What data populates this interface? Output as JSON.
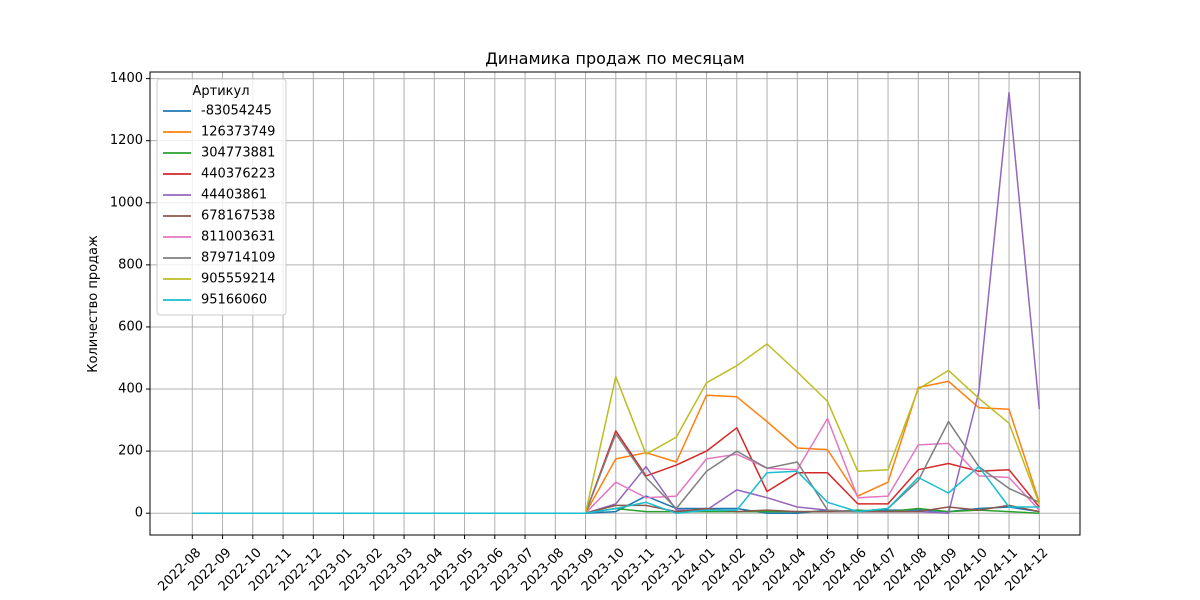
{
  "chart_data": {
    "type": "line",
    "title": "Динамика продаж по месяцам",
    "xlabel": "",
    "ylabel": "Количество продаж",
    "ylim": [
      -50,
      1420
    ],
    "yticks": [
      0,
      200,
      400,
      600,
      800,
      1000,
      1200,
      1400
    ],
    "grid": true,
    "legend_title": "Артикул",
    "legend_position": "top-left",
    "x": [
      "2022-08",
      "2022-09",
      "2022-10",
      "2022-11",
      "2022-12",
      "2023-01",
      "2023-02",
      "2023-03",
      "2023-04",
      "2023-05",
      "2023-06",
      "2023-07",
      "2023-08",
      "2023-09",
      "2023-10",
      "2023-11",
      "2023-12",
      "2024-01",
      "2024-02",
      "2024-03",
      "2024-04",
      "2024-05",
      "2024-06",
      "2024-07",
      "2024-08",
      "2024-09",
      "2024-10",
      "2024-11",
      "2024-12"
    ],
    "series": [
      {
        "name": "-83054245",
        "color": "#1f77b4",
        "values": [
          0,
          0,
          0,
          0,
          0,
          0,
          0,
          0,
          0,
          0,
          0,
          0,
          0,
          0,
          5,
          55,
          15,
          15,
          15,
          0,
          0,
          10,
          5,
          10,
          10,
          5,
          15,
          20,
          5
        ]
      },
      {
        "name": "126373749",
        "color": "#ff7f0e",
        "values": [
          0,
          0,
          0,
          0,
          0,
          0,
          0,
          0,
          0,
          0,
          0,
          0,
          0,
          0,
          175,
          195,
          165,
          380,
          375,
          295,
          210,
          205,
          55,
          100,
          405,
          425,
          340,
          335,
          35
        ]
      },
      {
        "name": "304773881",
        "color": "#2ca02c",
        "values": [
          0,
          0,
          0,
          0,
          0,
          0,
          0,
          0,
          0,
          0,
          0,
          0,
          0,
          0,
          15,
          5,
          5,
          5,
          5,
          5,
          5,
          5,
          10,
          5,
          15,
          5,
          10,
          5,
          0
        ]
      },
      {
        "name": "440376223",
        "color": "#d62728",
        "values": [
          0,
          0,
          0,
          0,
          0,
          0,
          0,
          0,
          0,
          0,
          0,
          0,
          0,
          0,
          265,
          120,
          155,
          200,
          275,
          70,
          130,
          130,
          30,
          30,
          140,
          160,
          135,
          140,
          20
        ]
      },
      {
        "name": "44403861",
        "color": "#9467bd",
        "values": [
          0,
          0,
          0,
          0,
          0,
          0,
          0,
          0,
          0,
          0,
          0,
          0,
          0,
          0,
          30,
          150,
          10,
          10,
          75,
          50,
          20,
          10,
          5,
          5,
          5,
          0,
          390,
          1355,
          335
        ]
      },
      {
        "name": "678167538",
        "color": "#8c564b",
        "values": [
          0,
          0,
          0,
          0,
          0,
          0,
          0,
          0,
          0,
          0,
          0,
          0,
          0,
          0,
          25,
          25,
          5,
          15,
          5,
          10,
          5,
          5,
          5,
          5,
          5,
          20,
          10,
          25,
          5
        ]
      },
      {
        "name": "811003631",
        "color": "#e377c2",
        "values": [
          0,
          0,
          0,
          0,
          0,
          0,
          0,
          0,
          0,
          0,
          0,
          0,
          0,
          0,
          100,
          50,
          55,
          175,
          190,
          145,
          140,
          305,
          50,
          55,
          220,
          225,
          120,
          115,
          10
        ]
      },
      {
        "name": "879714109",
        "color": "#7f7f7f",
        "values": [
          0,
          0,
          0,
          0,
          0,
          0,
          0,
          0,
          0,
          0,
          0,
          0,
          0,
          0,
          255,
          115,
          15,
          135,
          200,
          145,
          165,
          10,
          5,
          15,
          105,
          295,
          150,
          80,
          35
        ]
      },
      {
        "name": "905559214",
        "color": "#bcbd22",
        "values": [
          0,
          0,
          0,
          0,
          0,
          0,
          0,
          0,
          0,
          0,
          0,
          0,
          0,
          0,
          440,
          190,
          245,
          420,
          475,
          545,
          455,
          360,
          135,
          140,
          400,
          460,
          370,
          290,
          30
        ]
      },
      {
        "name": "95166060",
        "color": "#17becf",
        "values": [
          0,
          0,
          0,
          0,
          0,
          0,
          0,
          0,
          0,
          0,
          0,
          0,
          0,
          0,
          15,
          35,
          0,
          10,
          10,
          130,
          135,
          35,
          5,
          15,
          115,
          65,
          150,
          20,
          20
        ]
      }
    ]
  }
}
